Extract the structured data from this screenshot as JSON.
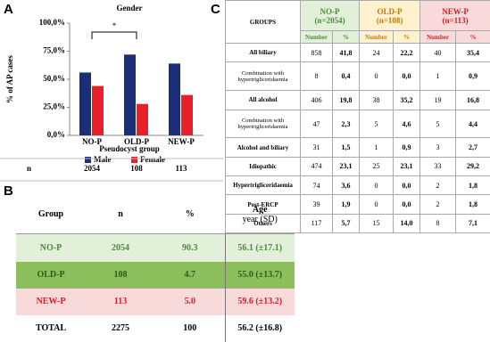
{
  "panel_labels": [
    "A",
    "B",
    "C"
  ],
  "chart_data": {
    "type": "bar",
    "title": "Gender",
    "y_label": "% of AP cases",
    "x_label": "Pseudocyst group",
    "categories": [
      "NO-P",
      "OLD-P",
      "NEW-P"
    ],
    "series": [
      {
        "name": "Male",
        "color": "#1b2f78",
        "values": [
          56,
          72,
          64
        ]
      },
      {
        "name": "Female",
        "color": "#e8202a",
        "values": [
          44,
          28,
          36
        ]
      }
    ],
    "ylim": [
      0,
      100
    ],
    "yticks": [
      {
        "value": 0,
        "label": "0,0%"
      },
      {
        "value": 25,
        "label": "25,0%"
      },
      {
        "value": 50,
        "label": "50,0%"
      },
      {
        "value": 75,
        "label": "75,0%"
      },
      {
        "value": 100,
        "label": "100,0%"
      }
    ],
    "legend": "bottom",
    "significance": "*",
    "n_label": "n",
    "n_values": [
      2054,
      108,
      113
    ]
  },
  "table_b": {
    "header": [
      "Group",
      "n",
      "%"
    ],
    "age_header": "Age",
    "age_unit": "year (SD)",
    "rows": [
      [
        "NO-P",
        "2054",
        "90.3",
        "56.1 (±17.1)"
      ],
      [
        "OLD-P",
        "108",
        "4.7",
        "55.0 (±13.7)"
      ],
      [
        "NEW-P",
        "113",
        "5.0",
        "59.6 (±13.2)"
      ],
      [
        "TOTAL",
        "2275",
        "100",
        "56.2 (±16.8)"
      ]
    ]
  },
  "table_c": {
    "groups_header": "GROUPS",
    "group_headers": [
      [
        "NO-P",
        "(n=2054)"
      ],
      [
        "OLD-P",
        "(n=108)"
      ],
      [
        "NEW-P",
        "(n=113)"
      ]
    ],
    "subheaders": [
      "Number",
      "%"
    ],
    "rows": [
      [
        "All biliary",
        "858",
        "41,8",
        "24",
        "22,2",
        "40",
        "35,4"
      ],
      [
        "Combination with hypertrigliceridaemia",
        "8",
        "0,4",
        "0",
        "0,0",
        "1",
        "0,9"
      ],
      [
        "All alcohol",
        "406",
        "19,8",
        "38",
        "35,2",
        "19",
        "16,8"
      ],
      [
        "Combination with hypertrigliceridaemia",
        "47",
        "2,3",
        "5",
        "4,6",
        "5",
        "4,4"
      ],
      [
        "Alcohol and biliary",
        "31",
        "1,5",
        "1",
        "0,9",
        "3",
        "2,7"
      ],
      [
        "Idiopathic",
        "474",
        "23,1",
        "25",
        "23,1",
        "33",
        "29,2"
      ],
      [
        "Hypertrigliceridaemia",
        "74",
        "3,6",
        "0",
        "0,0",
        "2",
        "1,8"
      ],
      [
        "Post-ERCP",
        "39",
        "1,9",
        "0",
        "0,0",
        "2",
        "1,8"
      ],
      [
        "Others",
        "117",
        "5,7",
        "15",
        "14,0",
        "8",
        "7,1"
      ]
    ]
  }
}
